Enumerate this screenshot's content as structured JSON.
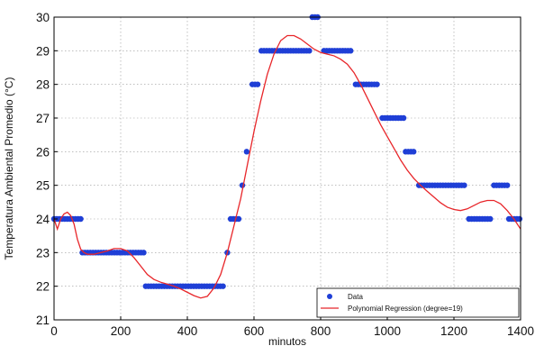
{
  "chart_data": {
    "type": "scatter",
    "title": "",
    "xlabel": "minutos",
    "ylabel": "Temperatura Ambiental Promedio (°C)",
    "xlim": [
      0,
      1400
    ],
    "ylim": [
      21,
      30
    ],
    "xticks": [
      "0",
      "200",
      "400",
      "600",
      "800",
      "1000",
      "1200",
      "1400"
    ],
    "yticks": [
      "21",
      "22",
      "23",
      "24",
      "25",
      "26",
      "27",
      "28",
      "29",
      "30"
    ],
    "grid": true,
    "legend_position": "bottom-right",
    "series": [
      {
        "name": "Data",
        "kind": "scatter",
        "color": "#1f3fd6",
        "segments": [
          {
            "y": 24,
            "x_start": 0,
            "x_end": 80,
            "step": 8
          },
          {
            "y": 23,
            "x_start": 85,
            "x_end": 275,
            "step": 8
          },
          {
            "y": 22,
            "x_start": 275,
            "x_end": 510,
            "step": 8
          },
          {
            "y": 23,
            "x_start": 520,
            "x_end": 520,
            "step": 8
          },
          {
            "y": 24,
            "x_start": 530,
            "x_end": 555,
            "step": 8
          },
          {
            "y": 25,
            "x_start": 565,
            "x_end": 565,
            "step": 8
          },
          {
            "y": 26,
            "x_start": 578,
            "x_end": 578,
            "step": 8
          },
          {
            "y": 28,
            "x_start": 595,
            "x_end": 615,
            "step": 8
          },
          {
            "y": 29,
            "x_start": 622,
            "x_end": 770,
            "step": 8
          },
          {
            "y": 30,
            "x_start": 775,
            "x_end": 795,
            "step": 8
          },
          {
            "y": 29,
            "x_start": 810,
            "x_end": 895,
            "step": 8
          },
          {
            "y": 28,
            "x_start": 905,
            "x_end": 975,
            "step": 8
          },
          {
            "y": 27,
            "x_start": 985,
            "x_end": 1050,
            "step": 8
          },
          {
            "y": 26,
            "x_start": 1055,
            "x_end": 1085,
            "step": 8
          },
          {
            "y": 25,
            "x_start": 1095,
            "x_end": 1235,
            "step": 8
          },
          {
            "y": 24,
            "x_start": 1245,
            "x_end": 1310,
            "step": 8
          },
          {
            "y": 25,
            "x_start": 1320,
            "x_end": 1360,
            "step": 8
          },
          {
            "y": 24,
            "x_start": 1365,
            "x_end": 1400,
            "step": 8
          }
        ]
      },
      {
        "name": "Polynomial Regression (degree=19)",
        "kind": "line",
        "color": "#e8262a",
        "x": [
          0,
          10,
          20,
          30,
          40,
          50,
          60,
          70,
          80,
          90,
          100,
          120,
          140,
          160,
          180,
          200,
          220,
          240,
          260,
          280,
          300,
          320,
          340,
          360,
          380,
          400,
          420,
          440,
          460,
          480,
          500,
          520,
          540,
          560,
          580,
          600,
          620,
          640,
          660,
          680,
          700,
          720,
          740,
          760,
          780,
          800,
          820,
          840,
          860,
          880,
          900,
          920,
          940,
          960,
          980,
          1000,
          1020,
          1040,
          1060,
          1080,
          1100,
          1120,
          1140,
          1160,
          1180,
          1200,
          1220,
          1240,
          1260,
          1280,
          1300,
          1320,
          1340,
          1360,
          1380,
          1400
        ],
        "y": [
          24.0,
          23.7,
          24.0,
          24.15,
          24.2,
          24.1,
          23.85,
          23.4,
          23.1,
          23.0,
          22.95,
          22.95,
          23.0,
          23.05,
          23.12,
          23.12,
          23.05,
          22.85,
          22.6,
          22.35,
          22.2,
          22.12,
          22.06,
          22.0,
          21.92,
          21.82,
          21.72,
          21.65,
          21.7,
          21.95,
          22.35,
          23.0,
          23.8,
          24.6,
          25.6,
          26.6,
          27.5,
          28.3,
          28.9,
          29.3,
          29.45,
          29.45,
          29.35,
          29.2,
          29.05,
          28.95,
          28.9,
          28.85,
          28.75,
          28.6,
          28.35,
          28.0,
          27.6,
          27.2,
          26.8,
          26.45,
          26.1,
          25.75,
          25.45,
          25.2,
          25.0,
          24.82,
          24.65,
          24.48,
          24.35,
          24.28,
          24.25,
          24.3,
          24.4,
          24.5,
          24.55,
          24.55,
          24.45,
          24.25,
          24.0,
          23.7
        ]
      }
    ]
  }
}
